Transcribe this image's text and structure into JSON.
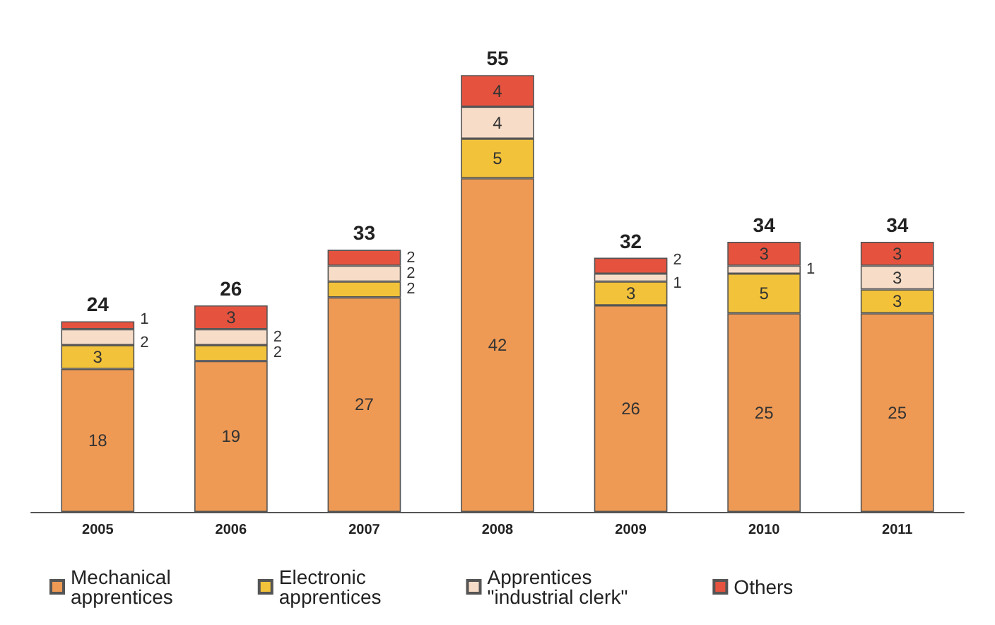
{
  "chart_data": {
    "type": "bar",
    "stacked": true,
    "categories": [
      "2005",
      "2006",
      "2007",
      "2008",
      "2009",
      "2010",
      "2011"
    ],
    "series": [
      {
        "name": "Mechanical\napprentices",
        "color": "#ee9a55",
        "values": [
          18,
          19,
          27,
          42,
          26,
          25,
          25
        ]
      },
      {
        "name": "Electronic\napprentices",
        "color": "#f2c23a",
        "values": [
          3,
          2,
          2,
          5,
          3,
          5,
          3
        ]
      },
      {
        "name": "Apprentices\n\"industrial clerk\"",
        "color": "#f7ddc8",
        "values": [
          2,
          2,
          2,
          4,
          1,
          1,
          3
        ]
      },
      {
        "name": "Others",
        "color": "#e5533f",
        "values": [
          1,
          3,
          2,
          4,
          2,
          3,
          3
        ]
      }
    ],
    "totals": [
      "24",
      "26",
      "33",
      "55",
      "32",
      "34",
      "34"
    ],
    "data_labels": true,
    "legend": "bottom",
    "tick_labels": "x"
  }
}
